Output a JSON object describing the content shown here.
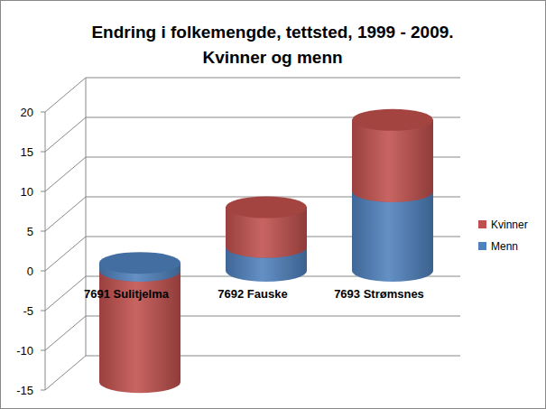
{
  "chart_data": {
    "type": "bar",
    "title": "Endring i folkemengde, tettsted, 1999 - 2009.",
    "subtitle": "Kvinner og menn",
    "categories": [
      "7691 Sulitjelma",
      "7692 Fauske",
      "7693 Strømsnes"
    ],
    "series": [
      {
        "name": "Menn",
        "color": "#4f81bd",
        "values": [
          1,
          3,
          10
        ]
      },
      {
        "name": "Kvinner",
        "color": "#c0504d",
        "values": [
          -14,
          5,
          9
        ]
      }
    ],
    "stacked": true,
    "legend": "right",
    "grid": true,
    "ylim": [
      -15,
      20
    ],
    "yticks": [
      -15,
      -10,
      -5,
      0,
      5,
      10,
      15,
      20
    ]
  }
}
